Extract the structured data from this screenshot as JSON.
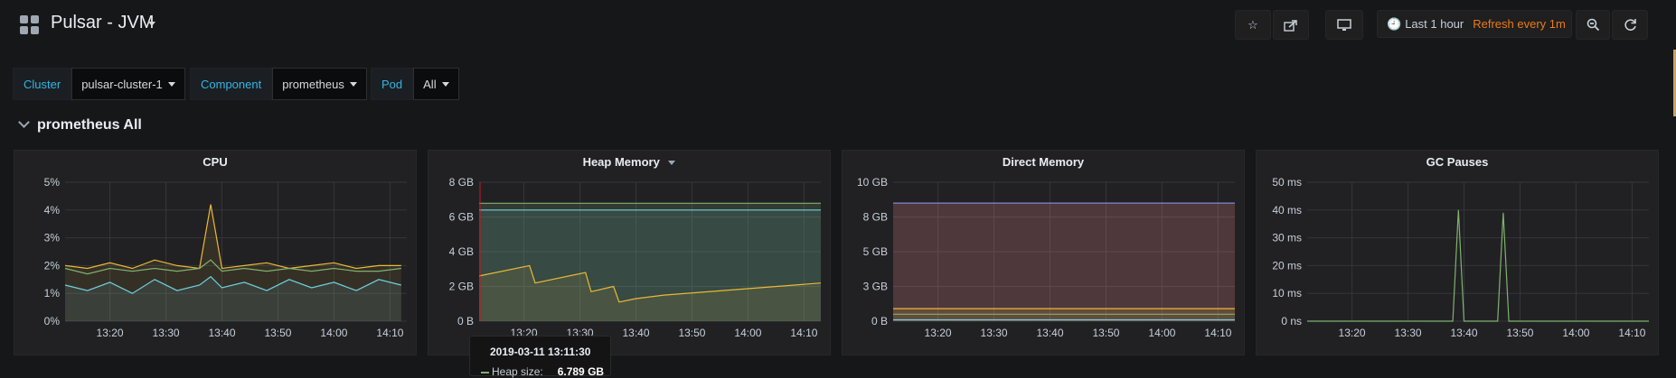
{
  "header": {
    "title": "Pulsar - JVM",
    "time_range": "Last 1 hour",
    "refresh": "Refresh every 1m",
    "buttons": [
      "star-icon",
      "share-icon",
      "tv-mode-icon",
      "zoom-out-icon",
      "refresh-icon"
    ]
  },
  "variables": [
    {
      "label": "Cluster",
      "value": "pulsar-cluster-1"
    },
    {
      "label": "Component",
      "value": "prometheus"
    },
    {
      "label": "Pod",
      "value": "All"
    }
  ],
  "row": {
    "title": "prometheus All"
  },
  "colors": {
    "green": "#7eb26d",
    "yellow": "#eab839",
    "cyan": "#6ed0e0",
    "blue": "#7e88d4",
    "refresh": "#eb7b18",
    "var_label": "#33b5e5"
  },
  "x_ticks": [
    "13:20",
    "13:30",
    "13:40",
    "13:50",
    "14:00",
    "14:10"
  ],
  "panels": [
    {
      "title": "CPU",
      "y_ticks": [
        "5%",
        "4%",
        "3%",
        "2%",
        "1%",
        "0%"
      ]
    },
    {
      "title": "Heap Memory",
      "y_ticks": [
        "8 GB",
        "6 GB",
        "4 GB",
        "2 GB",
        "0 B"
      ]
    },
    {
      "title": "Direct Memory",
      "y_ticks": [
        "10 GB",
        "8 GB",
        "5 GB",
        "3 GB",
        "0 B"
      ]
    },
    {
      "title": "GC Pauses",
      "y_ticks": [
        "50 ms",
        "40 ms",
        "30 ms",
        "20 ms",
        "10 ms",
        "0 ns"
      ]
    }
  ],
  "tooltip": {
    "time": "2019-03-11 13:11:30",
    "series": "Heap size:",
    "value": "6.789 GB"
  },
  "chart_data": [
    {
      "type": "line",
      "title": "CPU",
      "x": [
        "13:12",
        "13:16",
        "13:20",
        "13:24",
        "13:28",
        "13:32",
        "13:36",
        "13:38",
        "13:40",
        "13:44",
        "13:48",
        "13:52",
        "13:56",
        "14:00",
        "14:04",
        "14:08",
        "14:12"
      ],
      "ylim": [
        0,
        5
      ],
      "series": [
        {
          "values": [
            2.0,
            1.9,
            2.1,
            1.9,
            2.2,
            2.0,
            1.9,
            4.2,
            1.9,
            2.0,
            2.1,
            1.9,
            2.0,
            2.1,
            1.9,
            2.0,
            2.0
          ]
        },
        {
          "values": [
            1.9,
            1.7,
            1.9,
            1.8,
            1.9,
            1.8,
            1.9,
            2.2,
            1.8,
            1.9,
            1.8,
            1.9,
            1.8,
            1.9,
            1.8,
            1.8,
            1.9
          ]
        },
        {
          "values": [
            1.3,
            1.1,
            1.4,
            1.0,
            1.5,
            1.1,
            1.3,
            1.6,
            1.2,
            1.4,
            1.1,
            1.5,
            1.2,
            1.4,
            1.1,
            1.5,
            1.3
          ]
        }
      ]
    },
    {
      "type": "area",
      "title": "Heap Memory",
      "x": [
        "13:12",
        "13:21",
        "13:22",
        "13:31",
        "13:32",
        "13:36",
        "13:37",
        "13:40",
        "13:45",
        "14:13"
      ],
      "ylim": [
        0,
        8
      ],
      "series": [
        {
          "name": "Heap size",
          "values": [
            6.789,
            6.789,
            6.789,
            6.789,
            6.789,
            6.789,
            6.789,
            6.789,
            6.789,
            6.789
          ]
        },
        {
          "values": [
            6.4,
            6.4,
            6.4,
            6.4,
            6.4,
            6.4,
            6.4,
            6.4,
            6.4,
            6.4
          ]
        },
        {
          "values": [
            2.6,
            3.2,
            2.2,
            2.8,
            1.7,
            2.0,
            1.1,
            1.3,
            1.5,
            2.2
          ]
        }
      ]
    },
    {
      "type": "area",
      "title": "Direct Memory",
      "x": [
        "13:12",
        "14:13"
      ],
      "ylim": [
        0,
        10
      ],
      "series": [
        {
          "values": [
            8.5,
            8.5
          ]
        },
        {
          "values": [
            0.9,
            0.9
          ]
        },
        {
          "values": [
            0.5,
            0.5
          ]
        },
        {
          "values": [
            0.1,
            0.1
          ]
        }
      ]
    },
    {
      "type": "line",
      "title": "GC Pauses",
      "x": [
        "13:12",
        "13:38",
        "13:39",
        "13:40",
        "13:46",
        "13:47",
        "13:48",
        "14:13"
      ],
      "ylim": [
        0,
        50
      ],
      "series": [
        {
          "values": [
            0,
            0,
            40,
            0,
            0,
            39,
            0,
            0
          ]
        }
      ]
    }
  ]
}
